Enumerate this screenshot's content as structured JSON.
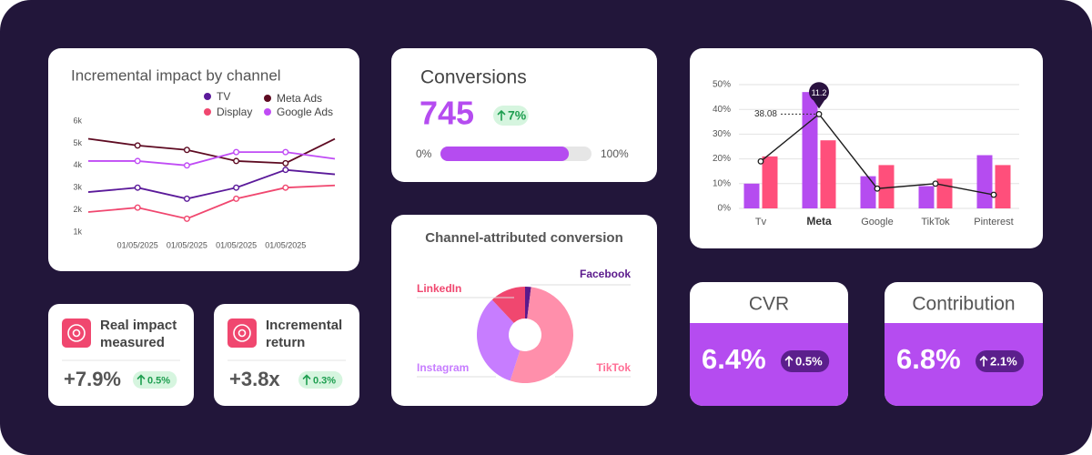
{
  "chart_data": [
    {
      "type": "line",
      "title": "Incremental impact by channel",
      "categories": [
        null,
        "01/05/2025",
        "01/05/2025",
        "01/05/2025",
        "01/05/2025",
        null
      ],
      "series": [
        {
          "name": "TV",
          "color": "#5b1a9a",
          "values": [
            2800,
            3000,
            2500,
            3000,
            3800,
            3600
          ]
        },
        {
          "name": "Meta Ads",
          "color": "#5e0b22",
          "values": [
            5200,
            4900,
            4700,
            4200,
            4100,
            5200
          ]
        },
        {
          "name": "Display",
          "color": "#f0476f",
          "values": [
            1900,
            2100,
            1600,
            2500,
            3000,
            3100
          ]
        },
        {
          "name": "Google Ads",
          "color": "#c04cf5",
          "values": [
            4200,
            4200,
            4000,
            4600,
            4600,
            4300
          ]
        }
      ],
      "ylim": [
        1000,
        6000
      ],
      "yticks": [
        {
          "value": 1000,
          "label": "1k"
        },
        {
          "value": 2000,
          "label": "2k"
        },
        {
          "value": 3000,
          "label": "3k"
        },
        {
          "value": 4000,
          "label": "4k"
        },
        {
          "value": 5000,
          "label": "5k"
        },
        {
          "value": 6000,
          "label": "6k"
        }
      ],
      "grid": false
    },
    {
      "type": "bar",
      "categories": [
        "Tv",
        "Meta",
        "Google",
        "TikTok",
        "Pinterest"
      ],
      "highlight_index": 1,
      "series": [
        {
          "color": "#b54cf0",
          "values": [
            10,
            47,
            13,
            9,
            21.5
          ]
        },
        {
          "color": "#ff4f7b",
          "values": [
            21,
            27.5,
            17.5,
            12,
            17.5
          ]
        },
        {
          "type": "line",
          "color": "#1e1e1e",
          "values": [
            19,
            38.08,
            8,
            10,
            5.5
          ],
          "value_labels": [
            null,
            "38.08",
            null,
            null,
            null
          ]
        }
      ],
      "annotations": [
        "11.2"
      ],
      "ylim": [
        0,
        50
      ],
      "yticks": [
        {
          "value": 0,
          "label": "0%"
        },
        {
          "value": 10,
          "label": "10%"
        },
        {
          "value": 20,
          "label": "20%"
        },
        {
          "value": 30,
          "label": "30%"
        },
        {
          "value": 40,
          "label": "40%"
        },
        {
          "value": 50,
          "label": "50%"
        }
      ],
      "grid": true
    },
    {
      "type": "pie",
      "title": "Channel-attributed conversion",
      "categories": [
        "Facebook",
        "TikTok",
        "Instagram",
        "LinkedIn"
      ],
      "values": [
        2,
        53,
        33,
        12
      ],
      "colors": [
        "#5b1a8c",
        "#ff8fab",
        "#c77dff",
        "#f0476f"
      ],
      "donut": true
    }
  ],
  "conversions": {
    "title": "Conversions",
    "value": "745",
    "change": "7%",
    "progress": {
      "value": 85,
      "min": {
        "value": 0,
        "label": "0%"
      },
      "max": {
        "value": 100,
        "label": "100%"
      }
    }
  },
  "kpis": [
    {
      "title_lines": [
        "Real impact",
        "measured"
      ],
      "value": "+7.9%",
      "change": "0.5%"
    },
    {
      "title_lines": [
        "Incremental",
        "return"
      ],
      "value": "+3.8x",
      "change": "0.3%"
    }
  ],
  "rates": [
    {
      "title": "CVR",
      "value": "6.4%",
      "change": "0.5%"
    },
    {
      "title": "Contribution",
      "value": "6.8%",
      "change": "2.1%"
    }
  ]
}
